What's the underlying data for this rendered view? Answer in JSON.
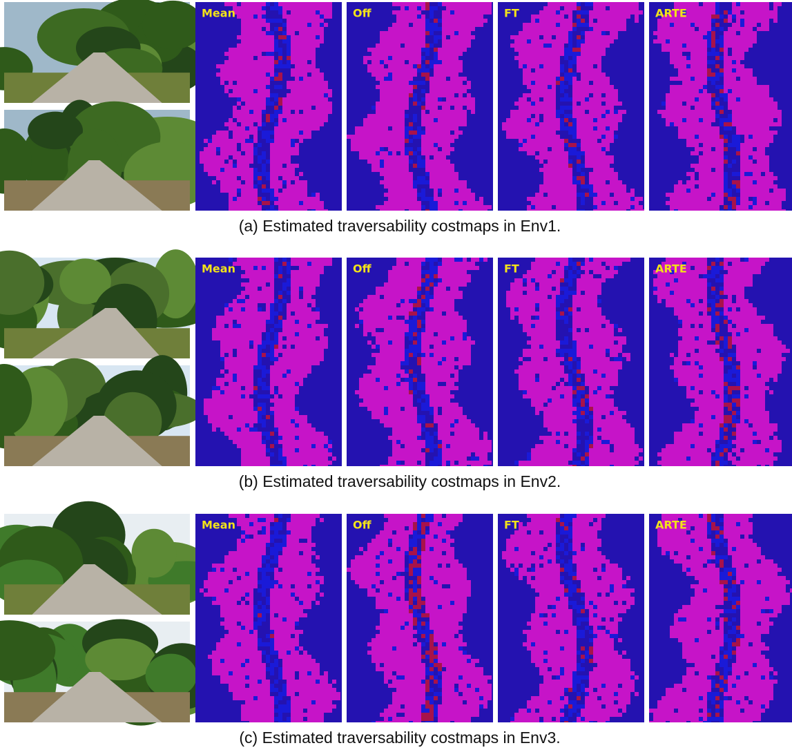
{
  "rows": [
    {
      "methods": [
        "Mean",
        "Off",
        "FT",
        "ARTE"
      ],
      "caption": "(a) Estimated traversability costmaps in Env1."
    },
    {
      "methods": [
        "Mean",
        "Off",
        "FT",
        "ARTE"
      ],
      "caption": "(b) Estimated traversability costmaps in Env2."
    },
    {
      "methods": [
        "Mean",
        "Off",
        "FT",
        "ARTE"
      ],
      "caption": "(c) Estimated traversability costmaps in Env3."
    }
  ]
}
